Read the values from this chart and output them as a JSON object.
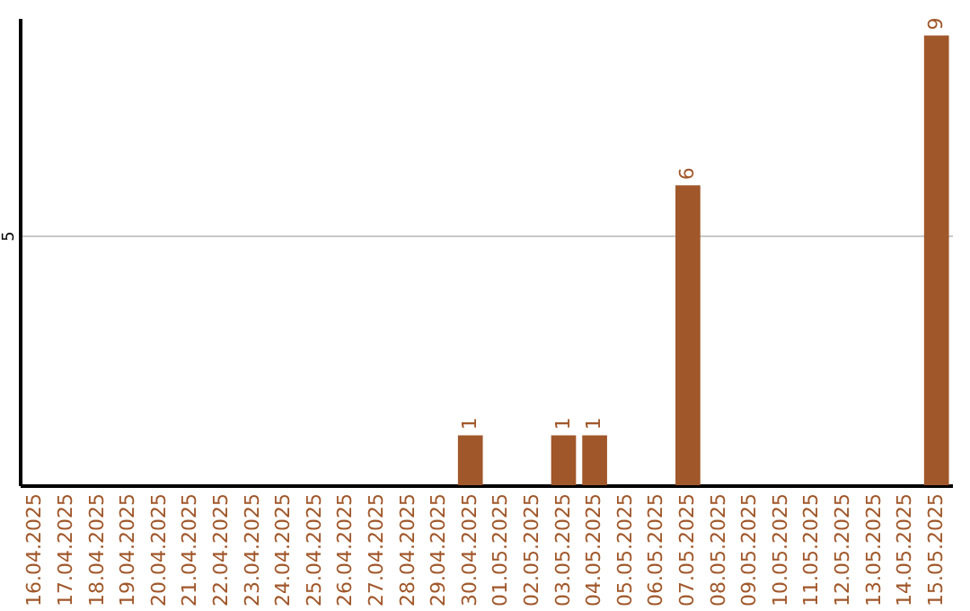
{
  "chart_data": {
    "type": "bar",
    "categories": [
      "16.04.2025",
      "17.04.2025",
      "18.04.2025",
      "19.04.2025",
      "20.04.2025",
      "21.04.2025",
      "22.04.2025",
      "23.04.2025",
      "24.04.2025",
      "25.04.2025",
      "26.04.2025",
      "27.04.2025",
      "28.04.2025",
      "29.04.2025",
      "30.04.2025",
      "01.05.2025",
      "02.05.2025",
      "03.05.2025",
      "04.05.2025",
      "05.05.2025",
      "06.05.2025",
      "07.05.2025",
      "08.05.2025",
      "09.05.2025",
      "10.05.2025",
      "11.05.2025",
      "12.05.2025",
      "13.05.2025",
      "14.05.2025",
      "15.05.2025"
    ],
    "values": [
      null,
      null,
      null,
      null,
      null,
      null,
      null,
      null,
      null,
      null,
      null,
      null,
      null,
      null,
      1,
      null,
      null,
      1,
      1,
      null,
      null,
      6,
      null,
      null,
      null,
      null,
      null,
      null,
      null,
      9
    ],
    "color": "#a0572a",
    "ylim": [
      0,
      9.35
    ],
    "yticks": [
      5
    ],
    "grid": "y",
    "data_labels": true
  }
}
